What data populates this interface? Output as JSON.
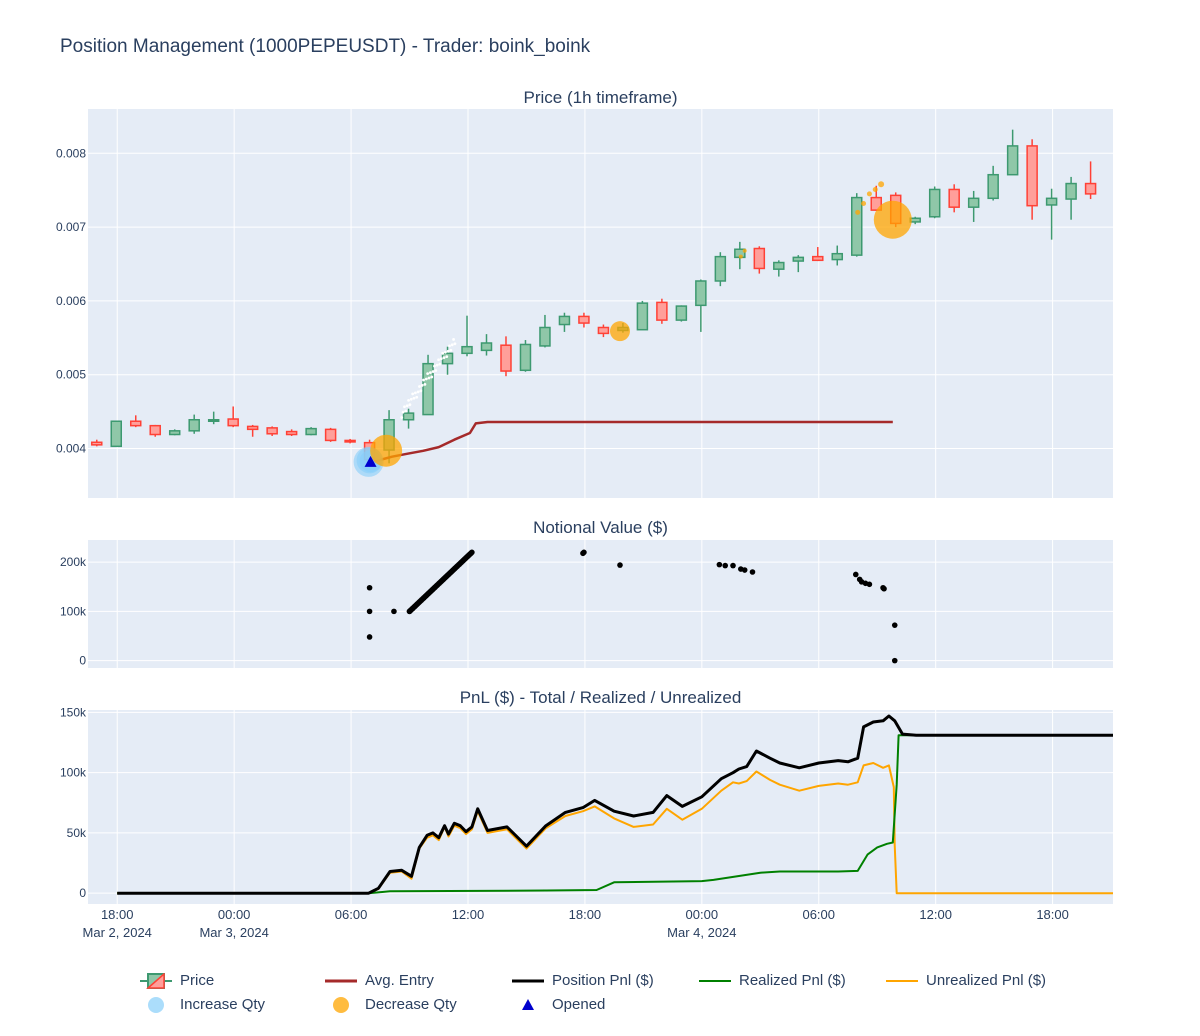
{
  "figure": {
    "title": "Position Management (1000PEPEUSDT) - Trader: boink_boink",
    "colors": {
      "plot_bg": "#e5ecf6",
      "grid": "#ffffff",
      "text": "#2a3f5f",
      "candle_up": "#3d9970",
      "candle_up_fill": "#8fc7a8",
      "candle_down": "#ff4136",
      "candle_down_fill": "#ff9f9a",
      "avg_entry": "#a52a2a",
      "position_pnl": "#000000",
      "realized_pnl": "#008000",
      "unrealized_pnl": "#ffa500",
      "increase_qty": "#87cefa",
      "decrease_qty": "#ffa500",
      "opened": "#0000cd"
    }
  },
  "x_axis": {
    "tick_hours": [
      18,
      24,
      30,
      36,
      42,
      48,
      54,
      60,
      66,
      72
    ],
    "tick_labels": [
      "18:00\nMar 2, 2024",
      "00:00\nMar 3, 2024",
      "06:00",
      "12:00",
      "18:00",
      "00:00\nMar 4, 2024",
      "06:00",
      "12:00",
      "18:00",
      ""
    ],
    "range": [
      16.5,
      69.1
    ]
  },
  "chart_data": [
    {
      "type": "candlestick",
      "title": "Price (1h timeframe)",
      "x_unit": "hours since Mar 2, 2024 00:00",
      "ylim": [
        0.00333,
        0.0086
      ],
      "yticks": [
        0.004,
        0.005,
        0.006,
        0.007,
        0.008
      ],
      "ytick_labels": [
        "0.004",
        "0.005",
        "0.006",
        "0.007",
        "0.008"
      ],
      "candles": [
        {
          "t": 16.95,
          "o": 0.004085,
          "h": 0.00412,
          "l": 0.00403,
          "c": 0.00405
        },
        {
          "t": 17.95,
          "o": 0.00403,
          "h": 0.00438,
          "l": 0.00403,
          "c": 0.00437
        },
        {
          "t": 18.95,
          "o": 0.00437,
          "h": 0.00445,
          "l": 0.00429,
          "c": 0.00431
        },
        {
          "t": 19.95,
          "o": 0.00431,
          "h": 0.00432,
          "l": 0.00416,
          "c": 0.00419
        },
        {
          "t": 20.95,
          "o": 0.00419,
          "h": 0.00426,
          "l": 0.00418,
          "c": 0.00424
        },
        {
          "t": 21.95,
          "o": 0.00424,
          "h": 0.00446,
          "l": 0.0042,
          "c": 0.00439
        },
        {
          "t": 22.95,
          "o": 0.00437,
          "h": 0.0045,
          "l": 0.00433,
          "c": 0.00439
        },
        {
          "t": 23.95,
          "o": 0.0044,
          "h": 0.00457,
          "l": 0.00429,
          "c": 0.00431
        },
        {
          "t": 24.95,
          "o": 0.0043,
          "h": 0.00432,
          "l": 0.00416,
          "c": 0.00426
        },
        {
          "t": 25.95,
          "o": 0.00428,
          "h": 0.0043,
          "l": 0.00417,
          "c": 0.0042
        },
        {
          "t": 26.95,
          "o": 0.00423,
          "h": 0.00426,
          "l": 0.00417,
          "c": 0.00419
        },
        {
          "t": 27.95,
          "o": 0.00419,
          "h": 0.00429,
          "l": 0.00418,
          "c": 0.00427
        },
        {
          "t": 28.95,
          "o": 0.00426,
          "h": 0.00428,
          "l": 0.00409,
          "c": 0.00411
        },
        {
          "t": 29.95,
          "o": 0.00411,
          "h": 0.00413,
          "l": 0.00407,
          "c": 0.00409
        },
        {
          "t": 30.95,
          "o": 0.00408,
          "h": 0.00412,
          "l": 0.00382,
          "c": 0.00385
        },
        {
          "t": 31.95,
          "o": 0.00398,
          "h": 0.00452,
          "l": 0.0038,
          "c": 0.00439
        },
        {
          "t": 32.95,
          "o": 0.00439,
          "h": 0.00454,
          "l": 0.00427,
          "c": 0.00448
        },
        {
          "t": 33.95,
          "o": 0.00446,
          "h": 0.00527,
          "l": 0.00446,
          "c": 0.00515
        },
        {
          "t": 34.95,
          "o": 0.00515,
          "h": 0.00538,
          "l": 0.005,
          "c": 0.00529
        },
        {
          "t": 35.95,
          "o": 0.00529,
          "h": 0.0058,
          "l": 0.00525,
          "c": 0.00538
        },
        {
          "t": 36.95,
          "o": 0.00533,
          "h": 0.00555,
          "l": 0.00526,
          "c": 0.00543
        },
        {
          "t": 37.95,
          "o": 0.0054,
          "h": 0.00552,
          "l": 0.00498,
          "c": 0.00505
        },
        {
          "t": 38.95,
          "o": 0.00506,
          "h": 0.00547,
          "l": 0.00504,
          "c": 0.00541
        },
        {
          "t": 39.95,
          "o": 0.00539,
          "h": 0.00581,
          "l": 0.00537,
          "c": 0.00564
        },
        {
          "t": 40.95,
          "o": 0.00568,
          "h": 0.00584,
          "l": 0.00558,
          "c": 0.00579
        },
        {
          "t": 41.95,
          "o": 0.00579,
          "h": 0.00584,
          "l": 0.00564,
          "c": 0.0057
        },
        {
          "t": 42.95,
          "o": 0.00564,
          "h": 0.00568,
          "l": 0.00551,
          "c": 0.00556
        },
        {
          "t": 43.95,
          "o": 0.0056,
          "h": 0.0057,
          "l": 0.00557,
          "c": 0.00564
        },
        {
          "t": 44.95,
          "o": 0.00561,
          "h": 0.006,
          "l": 0.00561,
          "c": 0.00597
        },
        {
          "t": 45.95,
          "o": 0.00598,
          "h": 0.00603,
          "l": 0.00569,
          "c": 0.00574
        },
        {
          "t": 46.95,
          "o": 0.00574,
          "h": 0.00594,
          "l": 0.00572,
          "c": 0.00593
        },
        {
          "t": 47.95,
          "o": 0.00594,
          "h": 0.00629,
          "l": 0.00558,
          "c": 0.00627
        },
        {
          "t": 48.95,
          "o": 0.00627,
          "h": 0.00666,
          "l": 0.0062,
          "c": 0.0066
        },
        {
          "t": 49.95,
          "o": 0.00659,
          "h": 0.0068,
          "l": 0.00643,
          "c": 0.0067
        },
        {
          "t": 50.95,
          "o": 0.00671,
          "h": 0.00674,
          "l": 0.00637,
          "c": 0.00644
        },
        {
          "t": 51.95,
          "o": 0.00643,
          "h": 0.00655,
          "l": 0.00633,
          "c": 0.00652
        },
        {
          "t": 52.95,
          "o": 0.00654,
          "h": 0.00662,
          "l": 0.00639,
          "c": 0.00659
        },
        {
          "t": 53.95,
          "o": 0.0066,
          "h": 0.00673,
          "l": 0.00654,
          "c": 0.00655
        },
        {
          "t": 54.95,
          "o": 0.00656,
          "h": 0.00675,
          "l": 0.00648,
          "c": 0.00664
        },
        {
          "t": 55.95,
          "o": 0.00662,
          "h": 0.00746,
          "l": 0.0066,
          "c": 0.0074
        },
        {
          "t": 56.95,
          "o": 0.0074,
          "h": 0.00756,
          "l": 0.00722,
          "c": 0.00723
        },
        {
          "t": 57.95,
          "o": 0.00743,
          "h": 0.00747,
          "l": 0.007,
          "c": 0.00705
        },
        {
          "t": 58.95,
          "o": 0.00707,
          "h": 0.00714,
          "l": 0.00704,
          "c": 0.00712
        },
        {
          "t": 59.95,
          "o": 0.00714,
          "h": 0.00755,
          "l": 0.00712,
          "c": 0.00751
        },
        {
          "t": 60.95,
          "o": 0.00751,
          "h": 0.00758,
          "l": 0.0072,
          "c": 0.00727
        },
        {
          "t": 61.95,
          "o": 0.00727,
          "h": 0.00749,
          "l": 0.00707,
          "c": 0.00739
        },
        {
          "t": 62.95,
          "o": 0.00739,
          "h": 0.00783,
          "l": 0.00736,
          "c": 0.00771
        },
        {
          "t": 63.95,
          "o": 0.00771,
          "h": 0.00832,
          "l": 0.00771,
          "c": 0.0081
        },
        {
          "t": 64.95,
          "o": 0.0081,
          "h": 0.00819,
          "l": 0.0071,
          "c": 0.00729
        },
        {
          "t": 65.95,
          "o": 0.0073,
          "h": 0.00752,
          "l": 0.00683,
          "c": 0.00739
        },
        {
          "t": 66.95,
          "o": 0.00738,
          "h": 0.00768,
          "l": 0.0071,
          "c": 0.00759
        },
        {
          "t": 67.95,
          "o": 0.00759,
          "h": 0.00789,
          "l": 0.00738,
          "c": 0.00745
        }
      ],
      "avg_entry": {
        "name": "Avg. Entry",
        "x": [
          30.9,
          31.4,
          32.1,
          32.9,
          33.7,
          34.5,
          35.3,
          36.1,
          36.4,
          37.0,
          40.0,
          45.0,
          50.0,
          55.0,
          57.8
        ],
        "y": [
          0.00379,
          0.00384,
          0.00389,
          0.00393,
          0.00397,
          0.00402,
          0.00412,
          0.00421,
          0.00434,
          0.00436,
          0.00436,
          0.00436,
          0.00436,
          0.00436,
          0.00436
        ]
      },
      "increase_qty": {
        "name": "Increase Qty",
        "x": [
          30.9,
          30.95,
          31.0
        ],
        "y": [
          0.00382,
          0.00384,
          0.00383
        ],
        "size": [
          30,
          26,
          22
        ]
      },
      "decrease_qty": {
        "name": "Decrease Qty",
        "x": [
          31.8,
          43.8,
          57.8,
          56.0,
          56.3,
          56.6,
          56.9,
          57.2,
          50.0,
          50.2
        ],
        "y": [
          0.00397,
          0.00559,
          0.0071,
          0.0072,
          0.00732,
          0.00745,
          0.00751,
          0.00758,
          0.0066,
          0.00668
        ],
        "size": [
          32,
          20,
          38,
          5,
          5,
          5,
          5,
          6,
          4,
          4
        ]
      },
      "opened": {
        "name": "Opened",
        "x": [
          31.0
        ],
        "y": [
          0.00382
        ]
      }
    },
    {
      "type": "scatter",
      "title": "Notional Value ($)",
      "ylim": [
        -15000,
        245000
      ],
      "yticks": [
        0,
        100000,
        200000
      ],
      "ytick_labels": [
        "0",
        "100k",
        "200k"
      ],
      "points": [
        [
          30.95,
          48000
        ],
        [
          30.95,
          100000
        ],
        [
          30.95,
          148000
        ],
        [
          32.2,
          100000
        ],
        [
          33.0,
          100000
        ],
        [
          41.9,
          218000
        ],
        [
          41.95,
          220000
        ],
        [
          43.8,
          194000
        ],
        [
          48.9,
          195000
        ],
        [
          49.2,
          193000
        ],
        [
          49.6,
          193000
        ],
        [
          50.0,
          186000
        ],
        [
          50.2,
          184000
        ],
        [
          50.6,
          180000
        ],
        [
          55.9,
          175000
        ],
        [
          56.1,
          165000
        ],
        [
          56.2,
          160000
        ],
        [
          56.4,
          157000
        ],
        [
          56.6,
          155000
        ],
        [
          57.3,
          148000
        ],
        [
          57.35,
          146000
        ],
        [
          57.9,
          72000
        ],
        [
          57.9,
          0
        ]
      ],
      "dense_segment": {
        "x0": 33.0,
        "y0": 100000,
        "x1": 36.2,
        "y1": 220000,
        "points": 90
      }
    },
    {
      "type": "line",
      "title": "PnL ($) - Total / Realized / Unrealized",
      "ylim": [
        -9000,
        152000
      ],
      "yticks": [
        0,
        50000,
        100000,
        150000
      ],
      "ytick_labels": [
        "0",
        "50k",
        "100k",
        "150k"
      ],
      "series": [
        {
          "name": "Position Pnl ($)",
          "x": [
            18.0,
            30.9,
            31.4,
            32.0,
            32.6,
            33.1,
            33.5,
            33.9,
            34.2,
            34.5,
            34.8,
            35.0,
            35.3,
            35.6,
            35.9,
            36.2,
            36.5,
            37.0,
            38.0,
            39.0,
            40.0,
            41.0,
            41.9,
            42.5,
            43.5,
            44.5,
            45.5,
            46.2,
            47.0,
            48.0,
            49.0,
            49.6,
            49.9,
            50.3,
            50.8,
            51.5,
            52.0,
            53.0,
            54.0,
            55.0,
            55.5,
            56.0,
            56.3,
            56.8,
            57.3,
            57.6,
            57.9,
            58.3,
            59.0,
            62.0,
            66.0,
            69.1
          ],
          "y": [
            0,
            0,
            4000,
            18000,
            19000,
            14000,
            38000,
            48000,
            50000,
            46000,
            56000,
            49000,
            58000,
            56000,
            51000,
            55000,
            70000,
            52000,
            55000,
            39000,
            56000,
            67000,
            71000,
            77000,
            68000,
            64000,
            67000,
            81000,
            72000,
            80000,
            95000,
            100000,
            103000,
            105000,
            118000,
            112000,
            108000,
            104000,
            108000,
            110000,
            109000,
            112000,
            138000,
            142000,
            143000,
            147000,
            143000,
            132000,
            131000,
            131000,
            131000,
            131000
          ]
        },
        {
          "name": "Realized Pnl ($)",
          "x": [
            18.0,
            30.9,
            32.0,
            40.0,
            42.0,
            42.6,
            43.5,
            48.0,
            48.6,
            51.0,
            52.0,
            55.0,
            56.0,
            56.5,
            57.0,
            57.5,
            57.8,
            58.0,
            58.1,
            58.3,
            66.0,
            69.1
          ],
          "y": [
            0,
            0,
            1500,
            2200,
            2500,
            2600,
            9000,
            10000,
            11000,
            17000,
            18000,
            18000,
            18500,
            32000,
            38000,
            41000,
            42000,
            90000,
            131000,
            131000,
            131000,
            131000
          ]
        },
        {
          "name": "Unrealized Pnl ($)",
          "x": [
            18.0,
            30.9,
            31.4,
            32.0,
            32.6,
            33.1,
            33.5,
            33.9,
            34.2,
            34.5,
            34.8,
            35.0,
            35.3,
            35.6,
            35.9,
            36.2,
            36.5,
            37.0,
            38.0,
            39.0,
            40.0,
            41.0,
            41.9,
            42.5,
            43.5,
            44.5,
            45.5,
            46.2,
            47.0,
            48.0,
            49.0,
            49.6,
            49.9,
            50.3,
            50.8,
            51.5,
            52.0,
            53.0,
            54.0,
            55.0,
            55.5,
            56.0,
            56.3,
            56.8,
            57.3,
            57.6,
            57.85,
            57.9,
            58.0,
            62.0,
            66.0,
            69.1
          ],
          "y": [
            0,
            0,
            3500,
            17000,
            18000,
            12000,
            37000,
            46000,
            48000,
            44000,
            55000,
            47000,
            56000,
            54000,
            49000,
            53000,
            68000,
            50000,
            53000,
            37000,
            54000,
            64000,
            68000,
            72000,
            62000,
            55000,
            57000,
            70000,
            61000,
            70000,
            85000,
            92000,
            91000,
            93000,
            101000,
            94000,
            90000,
            85000,
            89000,
            91000,
            90000,
            92000,
            106000,
            108000,
            104000,
            106000,
            88000,
            40000,
            0,
            0,
            0,
            0
          ]
        }
      ]
    }
  ],
  "legend": {
    "price": "Price",
    "avg_entry": "Avg. Entry",
    "position_pnl": "Position Pnl ($)",
    "realized_pnl": "Realized Pnl ($)",
    "unrealized_pnl": "Unrealized Pnl ($)",
    "increase_qty": "Increase Qty",
    "decrease_qty": "Decrease Qty",
    "opened": "Opened"
  }
}
